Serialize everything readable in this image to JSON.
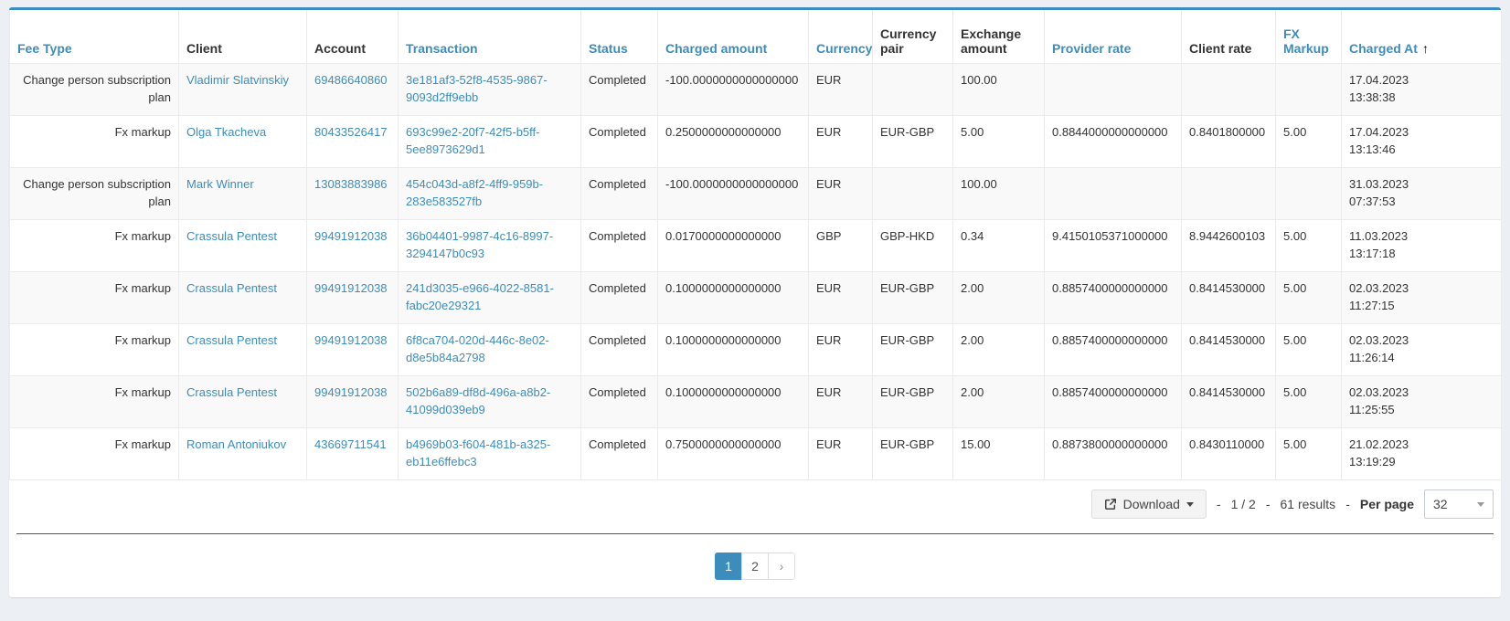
{
  "theme": {
    "accent": "#3c8dbc",
    "page_background": "#ecf0f5",
    "row_stripe": "#f9f9f9",
    "cell_border": "#ebebeb",
    "active_page_background": "#3c8dbc"
  },
  "table": {
    "columns": [
      {
        "key": "fee_type",
        "label": "Fee Type",
        "sortable": true
      },
      {
        "key": "client",
        "label": "Client",
        "sortable": false,
        "link": true
      },
      {
        "key": "account",
        "label": "Account",
        "sortable": false,
        "link": true
      },
      {
        "key": "transaction",
        "label": "Transaction",
        "sortable": true,
        "link": true
      },
      {
        "key": "status",
        "label": "Status",
        "sortable": true
      },
      {
        "key": "charged_amount",
        "label": "Charged amount",
        "sortable": true
      },
      {
        "key": "currency",
        "label": "Currency",
        "sortable": true
      },
      {
        "key": "currency_pair",
        "label": "Currency pair",
        "sortable": false
      },
      {
        "key": "exchange_amount",
        "label": "Exchange amount",
        "sortable": false
      },
      {
        "key": "provider_rate",
        "label": "Provider rate",
        "sortable": true
      },
      {
        "key": "client_rate",
        "label": "Client rate",
        "sortable": false
      },
      {
        "key": "fx_markup",
        "label": "FX Markup",
        "sortable": true
      },
      {
        "key": "charged_at",
        "label": "Charged At",
        "sortable": true,
        "sorted": "asc",
        "sort_icon": "↑"
      }
    ],
    "rows": [
      {
        "fee_type": "Change person subscription plan",
        "client": "Vladimir Slatvinskiy",
        "account": "69486640860",
        "transaction": "3e181af3-52f8-4535-9867-9093d2ff9ebb",
        "status": "Completed",
        "charged_amount": "-100.0000000000000000",
        "currency": "EUR",
        "currency_pair": "",
        "exchange_amount": "100.00",
        "provider_rate": "",
        "client_rate": "",
        "fx_markup": "",
        "charged_at_date": "17.04.2023",
        "charged_at_time": "13:38:38"
      },
      {
        "fee_type": "Fx markup",
        "client": "Olga Tkacheva",
        "account": "80433526417",
        "transaction": "693c99e2-20f7-42f5-b5ff-5ee8973629d1",
        "status": "Completed",
        "charged_amount": "0.2500000000000000",
        "currency": "EUR",
        "currency_pair": "EUR-GBP",
        "exchange_amount": "5.00",
        "provider_rate": "0.8844000000000000",
        "client_rate": "0.8401800000",
        "fx_markup": "5.00",
        "charged_at_date": "17.04.2023",
        "charged_at_time": "13:13:46"
      },
      {
        "fee_type": "Change person subscription plan",
        "client": "Mark Winner",
        "account": "13083883986",
        "transaction": "454c043d-a8f2-4ff9-959b-283e583527fb",
        "status": "Completed",
        "charged_amount": "-100.0000000000000000",
        "currency": "EUR",
        "currency_pair": "",
        "exchange_amount": "100.00",
        "provider_rate": "",
        "client_rate": "",
        "fx_markup": "",
        "charged_at_date": "31.03.2023",
        "charged_at_time": "07:37:53"
      },
      {
        "fee_type": "Fx markup",
        "client": "Crassula Pentest",
        "account": "99491912038",
        "transaction": "36b04401-9987-4c16-8997-3294147b0c93",
        "status": "Completed",
        "charged_amount": "0.0170000000000000",
        "currency": "GBP",
        "currency_pair": "GBP-HKD",
        "exchange_amount": "0.34",
        "provider_rate": "9.4150105371000000",
        "client_rate": "8.9442600103",
        "fx_markup": "5.00",
        "charged_at_date": "11.03.2023",
        "charged_at_time": "13:17:18"
      },
      {
        "fee_type": "Fx markup",
        "client": "Crassula Pentest",
        "account": "99491912038",
        "transaction": "241d3035-e966-4022-8581-fabc20e29321",
        "status": "Completed",
        "charged_amount": "0.1000000000000000",
        "currency": "EUR",
        "currency_pair": "EUR-GBP",
        "exchange_amount": "2.00",
        "provider_rate": "0.8857400000000000",
        "client_rate": "0.8414530000",
        "fx_markup": "5.00",
        "charged_at_date": "02.03.2023",
        "charged_at_time": "11:27:15"
      },
      {
        "fee_type": "Fx markup",
        "client": "Crassula Pentest",
        "account": "99491912038",
        "transaction": "6f8ca704-020d-446c-8e02-d8e5b84a2798",
        "status": "Completed",
        "charged_amount": "0.1000000000000000",
        "currency": "EUR",
        "currency_pair": "EUR-GBP",
        "exchange_amount": "2.00",
        "provider_rate": "0.8857400000000000",
        "client_rate": "0.8414530000",
        "fx_markup": "5.00",
        "charged_at_date": "02.03.2023",
        "charged_at_time": "11:26:14"
      },
      {
        "fee_type": "Fx markup",
        "client": "Crassula Pentest",
        "account": "99491912038",
        "transaction": "502b6a89-df8d-496a-a8b2-41099d039eb9",
        "status": "Completed",
        "charged_amount": "0.1000000000000000",
        "currency": "EUR",
        "currency_pair": "EUR-GBP",
        "exchange_amount": "2.00",
        "provider_rate": "0.8857400000000000",
        "client_rate": "0.8414530000",
        "fx_markup": "5.00",
        "charged_at_date": "02.03.2023",
        "charged_at_time": "11:25:55"
      },
      {
        "fee_type": "Fx markup",
        "client": "Roman Antoniukov",
        "account": "43669711541",
        "transaction": "b4969b03-f604-481b-a325-eb11e6ffebc3",
        "status": "Completed",
        "charged_amount": "0.7500000000000000",
        "currency": "EUR",
        "currency_pair": "EUR-GBP",
        "exchange_amount": "15.00",
        "provider_rate": "0.8873800000000000",
        "client_rate": "0.8430110000",
        "fx_markup": "5.00",
        "charged_at_date": "21.02.2023",
        "charged_at_time": "13:19:29"
      }
    ]
  },
  "footer": {
    "download_label": "Download",
    "separator": "-",
    "page_indicator": "1 / 2",
    "results_label": "61 results",
    "per_page_label": "Per page",
    "per_page_value": "32"
  },
  "pagination": {
    "page_1": "1",
    "page_2": "2",
    "next_label": "›",
    "active_page": "1"
  }
}
